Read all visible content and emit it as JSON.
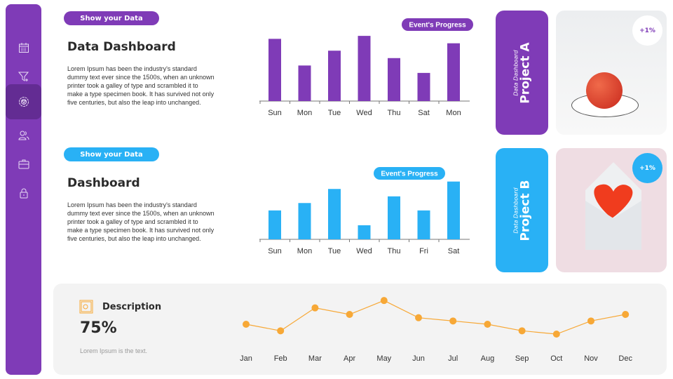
{
  "sidebar": {
    "items": [
      {
        "icon": "calendar-icon"
      },
      {
        "icon": "filter-add-icon"
      },
      {
        "icon": "settings-icon",
        "active": true
      },
      {
        "icon": "users-icon"
      },
      {
        "icon": "briefcase-icon"
      },
      {
        "icon": "lock-icon"
      }
    ]
  },
  "section1": {
    "pill": "Show your  Data",
    "title": "Data Dashboard",
    "body": "Lorem Ipsum has been the industry's standard dummy text ever since the 1500s, when an unknown printer took a galley of type and scrambled it to make a type specimen book. It has survived not only five centuries, but also the leap into unchanged."
  },
  "section2": {
    "pill": "Show your  Data",
    "title": "Dashboard",
    "body": "Lorem Ipsum has been the industry's standard dummy text ever since the 1500s, when an unknown printer took a galley of type and scrambled it to make a type specimen book. It has survived not only five centuries, but also the leap into unchanged."
  },
  "colors": {
    "purple": "#7f3bb7",
    "blue": "#29b1f5",
    "orange": "#f7a836"
  },
  "projects": [
    {
      "small": "Data Dashboard",
      "name": "Project A",
      "badge": "+1%",
      "color": "#7f3bb7"
    },
    {
      "small": "Data Dashboard",
      "name": "Project B",
      "badge": "+1%",
      "color": "#29b1f5"
    }
  ],
  "description": {
    "title": "Description",
    "value": "75%",
    "text": "Lorem Ipsum is the text.",
    "icon": "safe-icon"
  },
  "chart_data": [
    {
      "type": "bar",
      "title": "Event's Progress",
      "categories": [
        "Sun",
        "Mon",
        "Tue",
        "Wed",
        "Thu",
        "Sat",
        "Mon"
      ],
      "values": [
        84,
        48,
        68,
        88,
        58,
        38,
        78
      ],
      "color": "#7f3bb7",
      "ylim": [
        0,
        90
      ],
      "grid": false
    },
    {
      "type": "bar",
      "title": "Event's Progress",
      "categories": [
        "Sun",
        "Mon",
        "Tue",
        "Wed",
        "Thu",
        "Fri",
        "Sat"
      ],
      "values": [
        39,
        49,
        68,
        19,
        58,
        39,
        78
      ],
      "color": "#29b1f5",
      "ylim": [
        0,
        90
      ],
      "grid": false
    },
    {
      "type": "line",
      "categories": [
        "Jan",
        "Feb",
        "Mar",
        "Apr",
        "May",
        "Jun",
        "Jul",
        "Aug",
        "Sep",
        "Oct",
        "Nov",
        "Dec"
      ],
      "values": [
        24,
        16,
        44,
        36,
        53,
        32,
        28,
        24,
        16,
        12,
        28,
        36
      ],
      "color": "#f7a836",
      "ylim": [
        0,
        60
      ],
      "grid": false
    }
  ]
}
